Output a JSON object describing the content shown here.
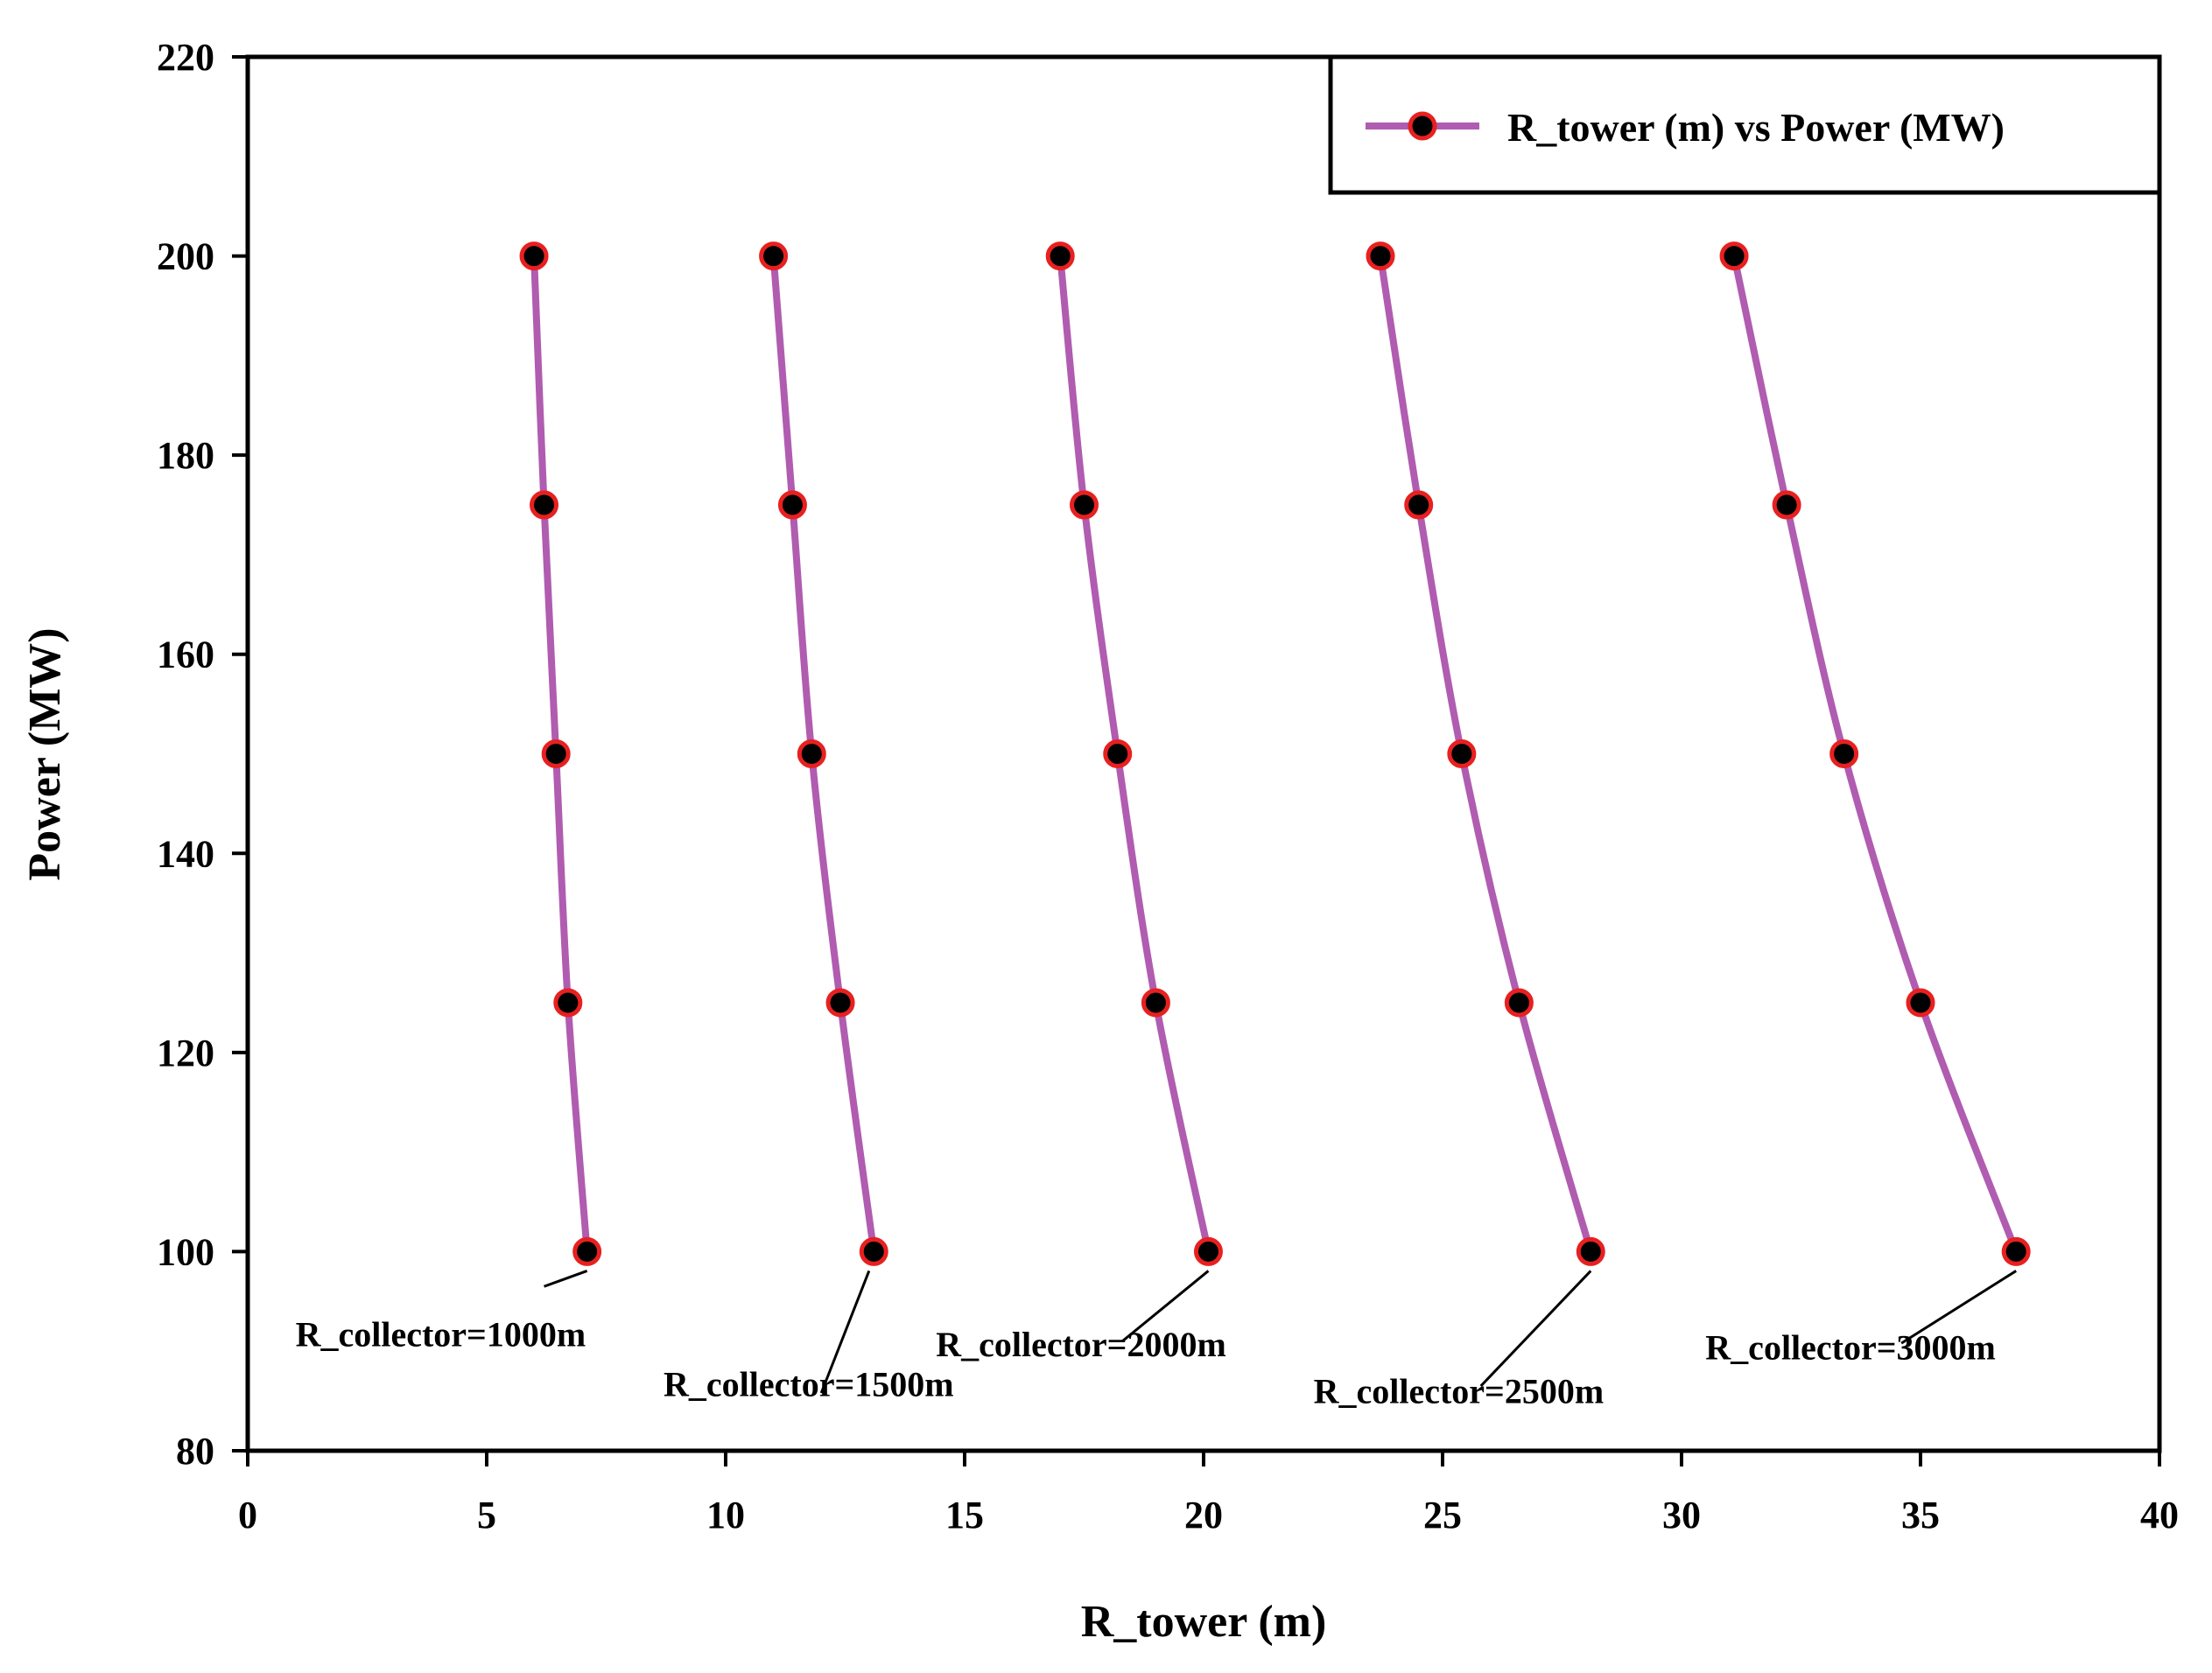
{
  "chart_data": {
    "type": "line",
    "title": "",
    "xlabel": "R_tower (m)",
    "ylabel": "Power (MW)",
    "xlim": [
      0,
      40
    ],
    "ylim": [
      80,
      220
    ],
    "xticks": [
      0,
      5,
      10,
      15,
      20,
      25,
      30,
      35,
      40
    ],
    "yticks": [
      80,
      100,
      120,
      140,
      160,
      180,
      200,
      220
    ],
    "grid": false,
    "legend": {
      "position": "top-right",
      "label": "R_tower (m) vs Power (MW)"
    },
    "line_color": "#b05cb0",
    "marker_fill": "#000000",
    "marker_edge": "#e82020",
    "series": [
      {
        "name": "R_collector=1000m",
        "x": [
          5.99,
          6.2,
          6.45,
          6.7,
          7.1
        ],
        "y": [
          200,
          175,
          150,
          125,
          100
        ]
      },
      {
        "name": "R_collector=1500m",
        "x": [
          11.0,
          11.4,
          11.8,
          12.4,
          13.1
        ],
        "y": [
          200,
          175,
          150,
          125,
          100
        ]
      },
      {
        "name": "R_collector=2000m",
        "x": [
          17.0,
          17.5,
          18.2,
          19.0,
          20.1
        ],
        "y": [
          200,
          175,
          150,
          125,
          100
        ]
      },
      {
        "name": "R_collector=2500m",
        "x": [
          23.7,
          24.5,
          25.4,
          26.6,
          28.1
        ],
        "y": [
          200,
          175,
          150,
          125,
          100
        ]
      },
      {
        "name": "R_collector=3000m",
        "x": [
          31.1,
          32.2,
          33.4,
          35.0,
          37.0
        ],
        "y": [
          200,
          175,
          150,
          125,
          100
        ]
      }
    ],
    "annotations": [
      {
        "text": "R_collector=1000m",
        "point": [
          7.1,
          100
        ],
        "label_at": [
          1.0,
          90.5
        ],
        "line_to": [
          6.2,
          96.5
        ]
      },
      {
        "text": "R_collector=1500m",
        "point": [
          13.0,
          100
        ],
        "label_at": [
          8.7,
          85.5
        ],
        "line_to": [
          12.0,
          85.8
        ]
      },
      {
        "text": "R_collector=2000m",
        "point": [
          20.1,
          100
        ],
        "label_at": [
          14.4,
          89.5
        ],
        "line_to": [
          18.3,
          91.0
        ]
      },
      {
        "text": "R_collector=2500m",
        "point": [
          28.1,
          100
        ],
        "label_at": [
          22.3,
          84.8
        ],
        "line_to": [
          25.8,
          86.5
        ]
      },
      {
        "text": "R_collector=3000m",
        "point": [
          37.0,
          100
        ],
        "label_at": [
          30.5,
          89.2
        ],
        "line_to": [
          34.6,
          90.8
        ]
      }
    ]
  }
}
